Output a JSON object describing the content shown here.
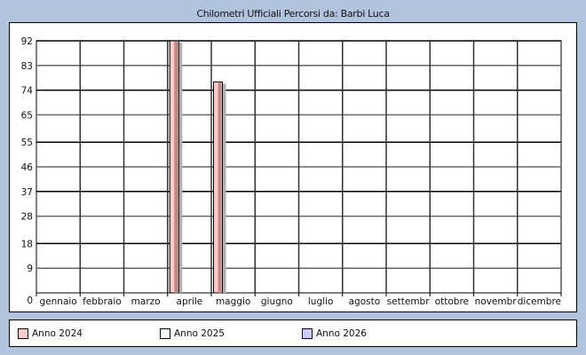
{
  "chart_data": {
    "type": "bar",
    "title": "Chilometri Ufficiali Percorsi da: Barbi Luca",
    "categories": [
      "gennaio",
      "febbraio",
      "marzo",
      "aprile",
      "maggio",
      "giugno",
      "luglio",
      "agosto",
      "settembr",
      "ottobre",
      "novembr",
      "dicembre"
    ],
    "y_ticks": [
      "0",
      "9",
      "18",
      "28",
      "37",
      "46",
      "55",
      "65",
      "74",
      "83",
      "92"
    ],
    "ylim": [
      0,
      92
    ],
    "grid": true,
    "legend_position": "bottom",
    "series": [
      {
        "name": "Anno 2024",
        "color": "#ffcccc",
        "values": [
          0,
          0,
          0,
          92,
          77,
          0,
          0,
          0,
          0,
          0,
          0,
          0
        ]
      },
      {
        "name": "Anno 2025",
        "color": "#f5fffa",
        "values": [
          0,
          0,
          0,
          0,
          0,
          0,
          0,
          0,
          0,
          0,
          0,
          0
        ]
      },
      {
        "name": "Anno 2026",
        "color": "#ccccff",
        "values": [
          0,
          0,
          0,
          0,
          0,
          0,
          0,
          0,
          0,
          0,
          0,
          0
        ]
      }
    ]
  }
}
